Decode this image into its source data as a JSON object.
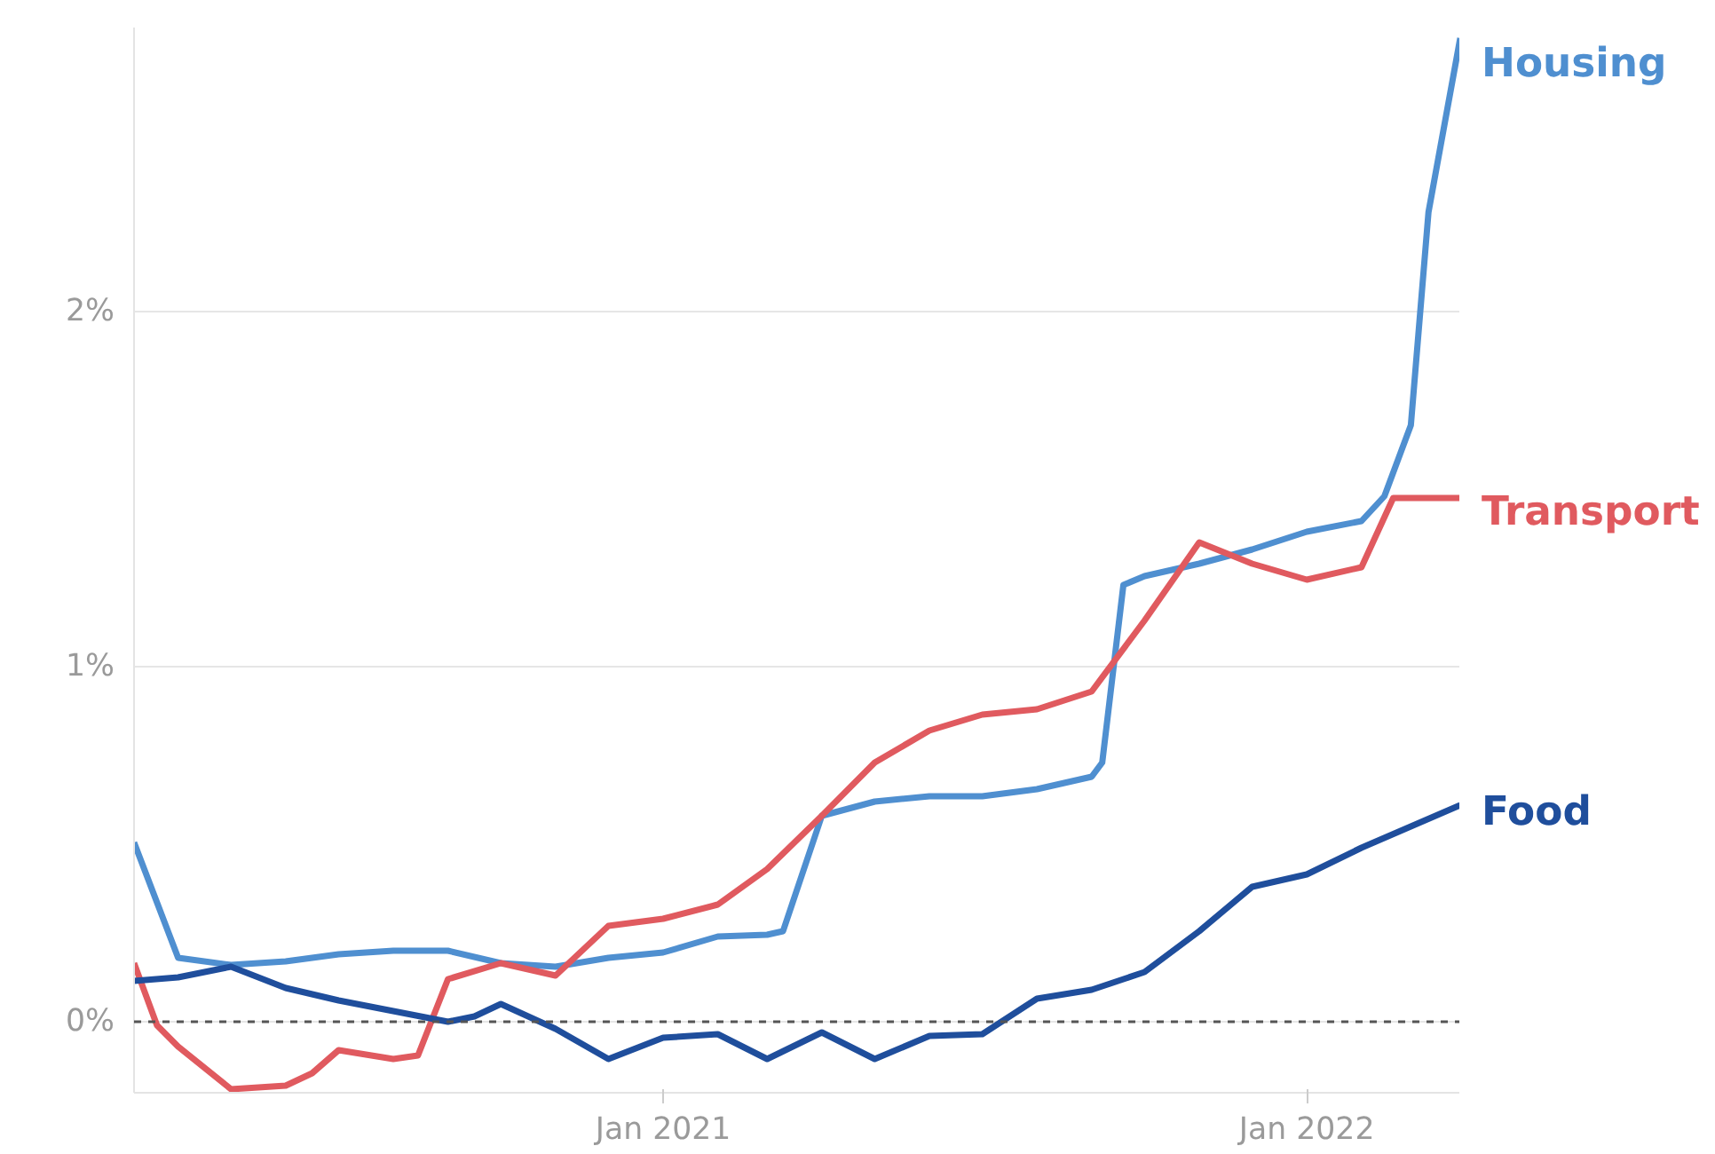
{
  "chart_data": {
    "type": "line",
    "xlim": [
      "2020-03-07",
      "2022-03-29"
    ],
    "ylim": [
      -0.2,
      2.8
    ],
    "xticks": [
      {
        "value": "2021-01-01",
        "label": "Jan 2021"
      },
      {
        "value": "2022-01-01",
        "label": "Jan 2022"
      }
    ],
    "yticks": [
      {
        "value": 0,
        "label": "0%"
      },
      {
        "value": 1,
        "label": "1%"
      },
      {
        "value": 2,
        "label": "2%"
      }
    ],
    "grid": "y",
    "legend": false,
    "marker": "none",
    "line_style": "solid",
    "ref_lines": [
      {
        "axis": "y",
        "value": 0,
        "label": null,
        "color": "#555555",
        "line_style": "dashed"
      }
    ],
    "series": [
      {
        "name": "Housing",
        "color": "#4f8fd0",
        "x": [
          "2020-03-07",
          "2020-04-01",
          "2020-05-01",
          "2020-06-01",
          "2020-07-01",
          "2020-08-01",
          "2020-09-01",
          "2020-10-01",
          "2020-11-01",
          "2020-12-01",
          "2021-01-01",
          "2021-02-01",
          "2021-03-01",
          "2021-03-10",
          "2021-04-01",
          "2021-05-01",
          "2021-06-01",
          "2021-07-01",
          "2021-08-01",
          "2021-09-01",
          "2021-09-07",
          "2021-09-19",
          "2021-10-01",
          "2021-11-01",
          "2021-12-01",
          "2022-01-01",
          "2022-02-01",
          "2022-02-14",
          "2022-03-01",
          "2022-03-11",
          "2022-03-29"
        ],
        "values": [
          0.505,
          0.18,
          0.16,
          0.17,
          0.19,
          0.2,
          0.2,
          0.165,
          0.155,
          0.18,
          0.195,
          0.24,
          0.245,
          0.255,
          0.58,
          0.62,
          0.635,
          0.635,
          0.655,
          0.69,
          0.73,
          1.23,
          1.255,
          1.29,
          1.33,
          1.38,
          1.41,
          1.48,
          1.68,
          2.28,
          2.77
        ]
      },
      {
        "name": "Transport",
        "color": "#e05a5f",
        "x": [
          "2020-03-07",
          "2020-03-20",
          "2020-04-01",
          "2020-05-01",
          "2020-06-01",
          "2020-06-16",
          "2020-07-01",
          "2020-08-01",
          "2020-08-15",
          "2020-09-01",
          "2020-10-01",
          "2020-11-01",
          "2020-12-01",
          "2021-01-01",
          "2021-02-01",
          "2021-03-01",
          "2021-04-01",
          "2021-05-01",
          "2021-06-01",
          "2021-07-01",
          "2021-08-01",
          "2021-09-01",
          "2021-10-01",
          "2021-11-01",
          "2021-12-01",
          "2022-01-01",
          "2022-02-01",
          "2022-02-19",
          "2022-03-29"
        ],
        "values": [
          0.165,
          -0.01,
          -0.07,
          -0.19,
          -0.18,
          -0.145,
          -0.08,
          -0.105,
          -0.095,
          0.12,
          0.165,
          0.13,
          0.27,
          0.29,
          0.33,
          0.43,
          0.58,
          0.73,
          0.82,
          0.865,
          0.88,
          0.93,
          1.13,
          1.35,
          1.29,
          1.245,
          1.28,
          1.475,
          1.475
        ]
      },
      {
        "name": "Food",
        "color": "#1f4e9c",
        "x": [
          "2020-03-07",
          "2020-04-01",
          "2020-05-01",
          "2020-06-01",
          "2020-07-01",
          "2020-08-01",
          "2020-09-01",
          "2020-09-16",
          "2020-10-01",
          "2020-11-01",
          "2020-12-01",
          "2021-01-01",
          "2021-02-01",
          "2021-03-01",
          "2021-04-01",
          "2021-05-01",
          "2021-06-01",
          "2021-07-01",
          "2021-08-01",
          "2021-09-01",
          "2021-10-01",
          "2021-11-01",
          "2021-12-01",
          "2022-01-01",
          "2022-02-01",
          "2022-03-29"
        ],
        "values": [
          0.115,
          0.125,
          0.155,
          0.095,
          0.06,
          0.03,
          0.0,
          0.015,
          0.05,
          -0.02,
          -0.105,
          -0.045,
          -0.035,
          -0.105,
          -0.03,
          -0.105,
          -0.04,
          -0.035,
          0.065,
          0.09,
          0.14,
          0.255,
          0.38,
          0.415,
          0.49,
          0.61
        ]
      }
    ]
  }
}
